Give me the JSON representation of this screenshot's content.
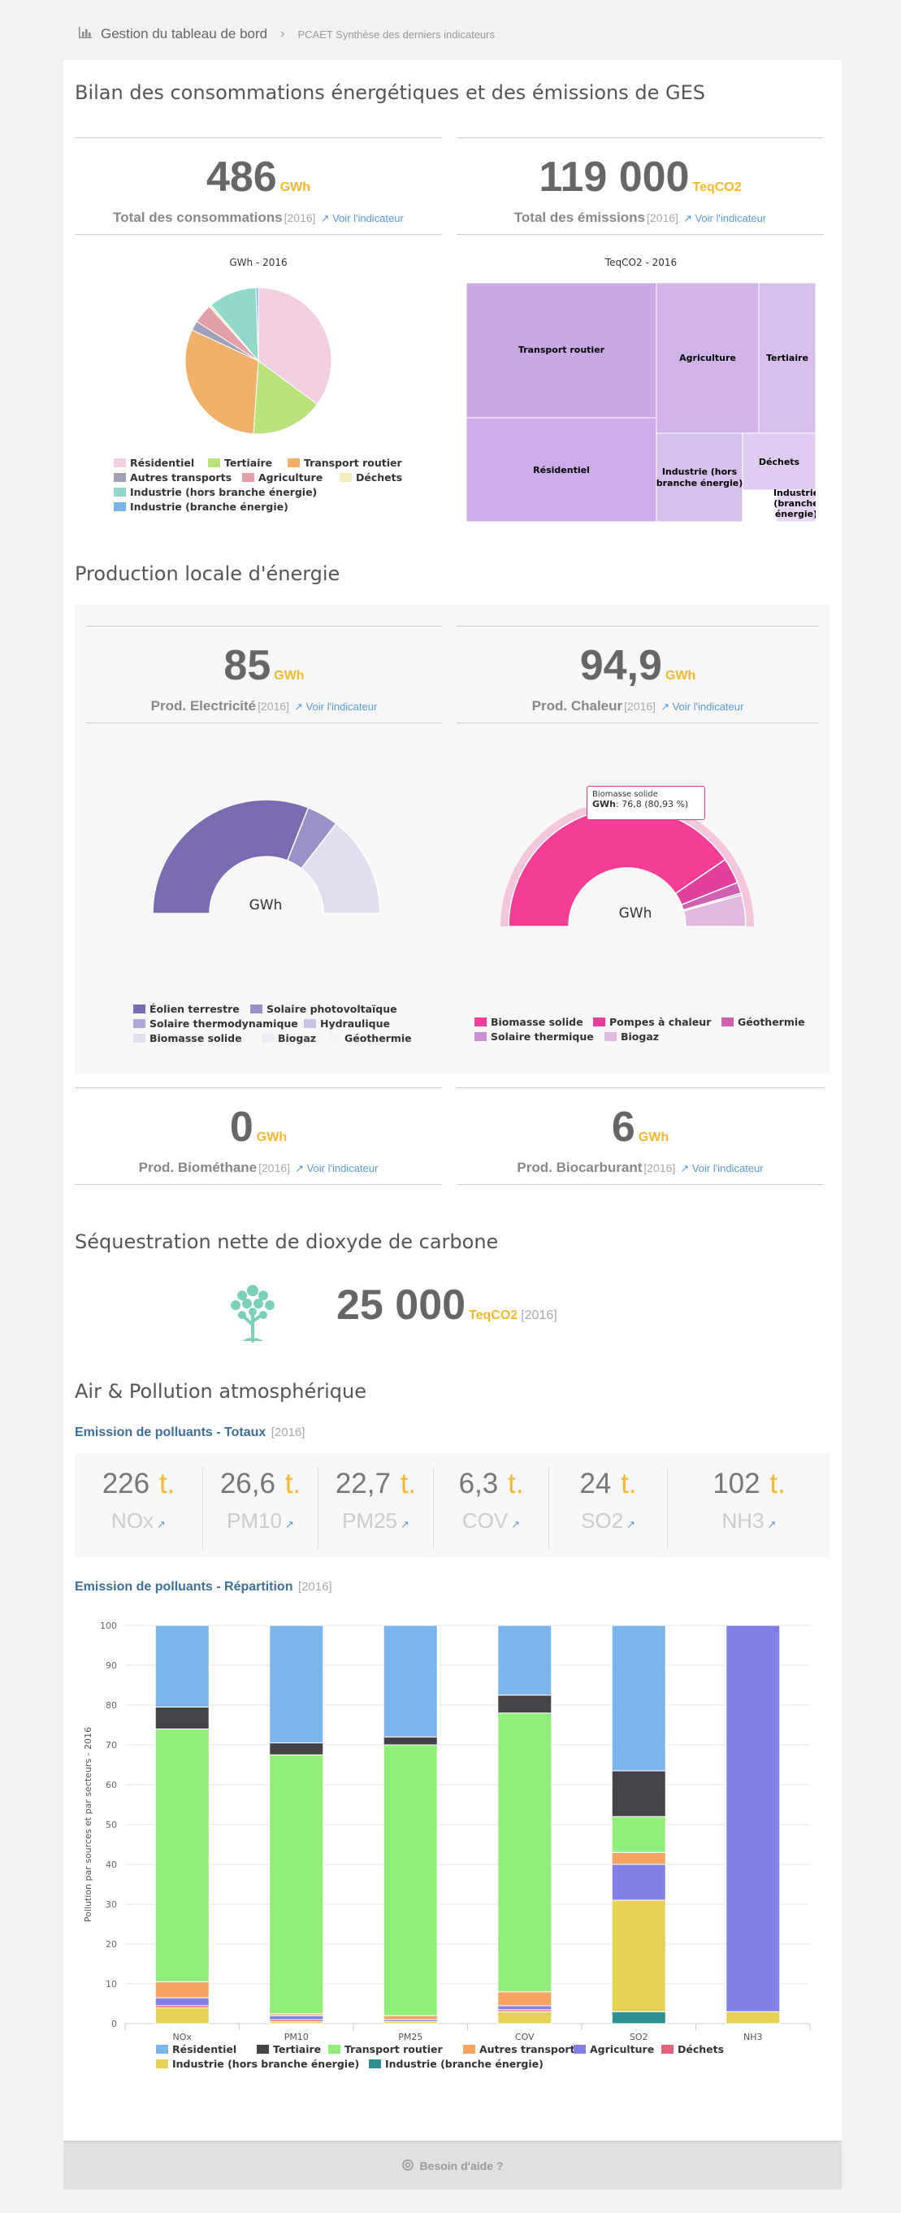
{
  "breadcrumb": {
    "icon": "bar-chart-icon",
    "main": "Gestion du tableau de bord",
    "sub": "PCAET Synthèse des derniers indicateurs"
  },
  "colors": {
    "accent": "#f5b82e",
    "link": "#5b9bd5",
    "subtitle": "#3d6e99"
  },
  "section1": {
    "title": "Bilan des consommations énergétiques et des émissions de GES",
    "kpi_conso": {
      "value": "486",
      "unit": "GWh",
      "label": "Total des consommations",
      "year": "[2016]",
      "link": "Voir l'indicateur"
    },
    "kpi_emis": {
      "value": "119 000",
      "unit": "TeqCO2",
      "label": "Total des émissions",
      "year": "[2016]",
      "link": "Voir l'indicateur"
    },
    "pie_title": "GWh - 2016",
    "pie_legend": [
      "Résidentiel",
      "Tertiaire",
      "Transport routier",
      "Autres transports",
      "Agriculture",
      "Déchets",
      "Industrie (hors branche énergie)",
      "Industrie (branche énergie)"
    ],
    "treemap_title": "TeqCO2 - 2016",
    "treemap_labels": [
      "Transport routier",
      "Agriculture",
      "Tertiaire",
      "Résidentiel",
      "Industrie (hors branche énergie)",
      "Déchets",
      "Industrie (branche énergie)"
    ]
  },
  "section2": {
    "title": "Production locale d'énergie",
    "kpi_elec": {
      "value": "85",
      "unit": "GWh",
      "label": "Prod. Electricité",
      "year": "[2016]",
      "link": "Voir l'indicateur"
    },
    "kpi_chal": {
      "value": "94,9",
      "unit": "GWh",
      "label": "Prod. Chaleur",
      "year": "[2016]",
      "link": "Voir l'indicateur"
    },
    "donut_center": "GWh",
    "elec_legend": [
      "Éolien terrestre",
      "Solaire photovoltaïque",
      "Solaire thermodynamique",
      "Hydraulique",
      "Biomasse solide",
      "Biogaz",
      "Géothermie"
    ],
    "chal_legend": [
      "Biomasse solide",
      "Pompes à chaleur",
      "Géothermie",
      "Solaire thermique",
      "Biogaz"
    ],
    "tooltip": {
      "title": "Biomasse solide",
      "label": "GWh",
      "value": ": 76,8 (80,93 %)"
    },
    "kpi_biomet": {
      "value": "0",
      "unit": "GWh",
      "label": "Prod. Biométhane",
      "year": "[2016]",
      "link": "Voir l'indicateur"
    },
    "kpi_biocarb": {
      "value": "6",
      "unit": "GWh",
      "label": "Prod. Biocarburant",
      "year": "[2016]",
      "link": "Voir l'indicateur"
    }
  },
  "section3": {
    "title": "Séquestration nette de dioxyde de carbone",
    "icon": "tree-icon",
    "value": "25 000",
    "unit": "TeqCO2",
    "year": "[2016]"
  },
  "section4": {
    "title": "Air & Pollution atmosphérique",
    "totals_title": "Emission de polluants - Totaux",
    "totals_year": "[2016]",
    "pollutants": [
      {
        "value": "226",
        "unit": "t.",
        "name": "NOx"
      },
      {
        "value": "26,6",
        "unit": "t.",
        "name": "PM10"
      },
      {
        "value": "22,7",
        "unit": "t.",
        "name": "PM25"
      },
      {
        "value": "6,3",
        "unit": "t.",
        "name": "COV"
      },
      {
        "value": "24",
        "unit": "t.",
        "name": "SO2"
      },
      {
        "value": "102",
        "unit": "t.",
        "name": "NH3"
      }
    ],
    "repartition_title": "Emission de polluants - Répartition",
    "repartition_year": "[2016]"
  },
  "help": {
    "label": "Besoin d'aide ?"
  },
  "chart_data": [
    {
      "type": "pie",
      "title": "GWh - 2016",
      "categories": [
        "Résidentiel",
        "Tertiaire",
        "Transport routier",
        "Autres transports",
        "Agriculture",
        "Déchets",
        "Industrie (hors branche énergie)",
        "Industrie (branche énergie)"
      ],
      "values": [
        33,
        15,
        29,
        2,
        4,
        0.5,
        10,
        0.5
      ],
      "colors": [
        "#f2d0e2",
        "#b9e27a",
        "#f0b06a",
        "#a0a0b8",
        "#e3a0a8",
        "#f3ecbe",
        "#92d8c8",
        "#7ab4e8"
      ]
    },
    {
      "type": "treemap",
      "title": "TeqCO2 - 2016",
      "categories": [
        "Transport routier",
        "Agriculture",
        "Tertiaire",
        "Résidentiel",
        "Industrie (hors branche énergie)",
        "Déchets",
        "Industrie (branche énergie)"
      ],
      "colors": [
        "#c9a8e2",
        "#d0b4e8",
        "#d8c0ec",
        "#ccacea",
        "#d8c0ec",
        "#e0ccf0",
        "#e6d6f4"
      ]
    },
    {
      "type": "pie",
      "title": "Prod. Electricité",
      "categories": [
        "Éolien terrestre",
        "Solaire photovoltaïque",
        "Solaire thermodynamique",
        "Hydraulique",
        "Biomasse solide",
        "Biogaz",
        "Géothermie"
      ],
      "values": [
        62,
        9,
        0,
        0,
        29,
        0,
        0
      ],
      "colors": [
        "#7b6bb0",
        "#9a90c8",
        "#b0a8d8",
        "#c8c4e6",
        "#e0dfef",
        "#ececf4",
        "#f4f4f8"
      ]
    },
    {
      "type": "pie",
      "title": "Prod. Chaleur",
      "categories": [
        "Biomasse solide",
        "Pompes à chaleur",
        "Géothermie",
        "Solaire thermique",
        "Biogaz"
      ],
      "values": [
        80.93,
        7,
        3,
        0.5,
        8.57
      ],
      "colors": [
        "#f53d96",
        "#e0409a",
        "#d060b0",
        "#c890d0",
        "#e0b8e0"
      ]
    },
    {
      "type": "bar",
      "stacked": true,
      "ylabel": "Pollution par sources et par secteurs - 2016",
      "ylim": [
        0,
        100
      ],
      "yticks": [
        0,
        10,
        20,
        30,
        40,
        50,
        60,
        70,
        80,
        90,
        100
      ],
      "categories": [
        "NOx",
        "PM10",
        "PM25",
        "COV",
        "SO2",
        "NH3"
      ],
      "series": [
        {
          "name": "Industrie (branche énergie)",
          "color": "#2a9090",
          "values": [
            0,
            0,
            0,
            0,
            3,
            0
          ]
        },
        {
          "name": "Industrie (hors branche énergie)",
          "color": "#e6d155",
          "values": [
            4,
            0.5,
            0.5,
            3,
            28,
            3
          ]
        },
        {
          "name": "Déchets",
          "color": "#e8607a",
          "values": [
            0.5,
            0.5,
            0,
            0.5,
            0,
            0
          ]
        },
        {
          "name": "Agriculture",
          "color": "#8080e6",
          "values": [
            2,
            1,
            0.5,
            1,
            9,
            97
          ]
        },
        {
          "name": "Autres transports",
          "color": "#f4a460",
          "values": [
            4,
            0.5,
            1,
            3.5,
            3,
            0
          ]
        },
        {
          "name": "Transport routier",
          "color": "#90ee78",
          "values": [
            63.5,
            65,
            68,
            70,
            9,
            0
          ]
        },
        {
          "name": "Tertiaire",
          "color": "#434348",
          "values": [
            5.5,
            3,
            2,
            4.5,
            11.5,
            0
          ]
        },
        {
          "name": "Résidentiel",
          "color": "#7cb5ec",
          "values": [
            20.5,
            29.5,
            28,
            17.5,
            36.5,
            0
          ]
        }
      ],
      "legend": [
        "Résidentiel",
        "Tertiaire",
        "Transport routier",
        "Autres transports",
        "Agriculture",
        "Déchets",
        "Industrie (hors branche énergie)",
        "Industrie (branche énergie)"
      ]
    }
  ]
}
